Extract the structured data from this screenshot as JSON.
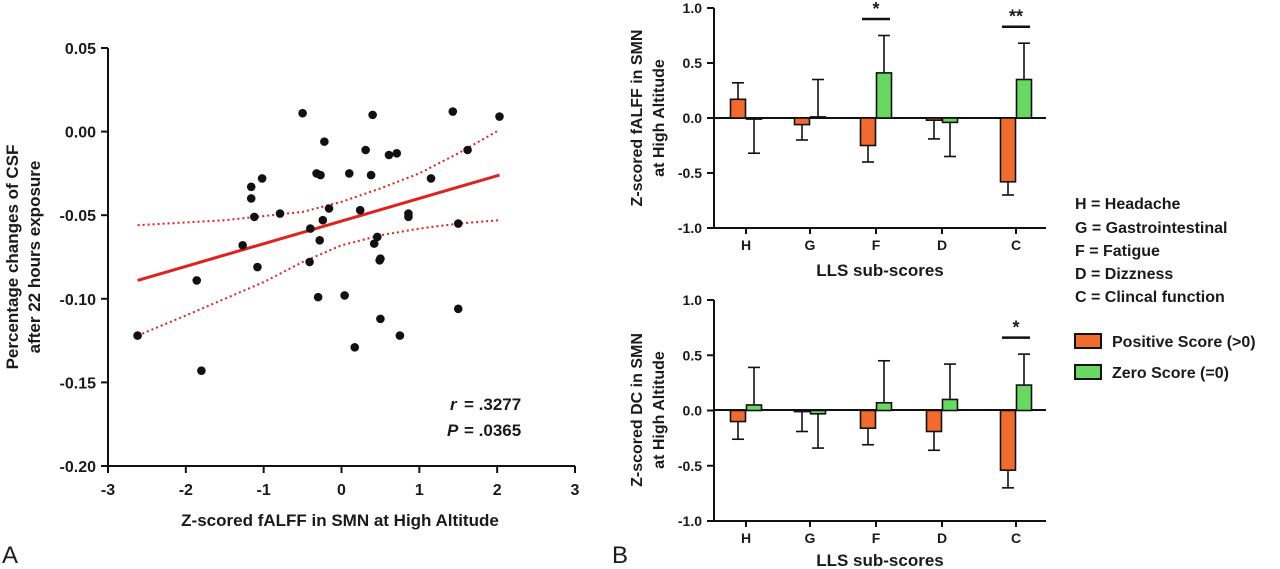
{
  "panel_labels": {
    "a": "A",
    "b": "B"
  },
  "colors": {
    "scatter_point": "#111111",
    "fit_line": "#e0211d",
    "positive_bar": "#f26b2e",
    "zero_bar": "#69d863",
    "axis": "#111111"
  },
  "chart_data": [
    {
      "id": "scatter",
      "type": "scatter",
      "xlabel": "Z-scored fALFF in SMN at High Altitude",
      "ylabel_lines": [
        "Percentage changes of CSF",
        "after 22 hours exposure"
      ],
      "xlim": [
        -3,
        3
      ],
      "ylim": [
        -0.2,
        0.05
      ],
      "xticks": [
        -3,
        -2,
        -1,
        0,
        1,
        2,
        3
      ],
      "xtick_labels": [
        "-3",
        "-2",
        "-1",
        "0",
        "1",
        "2",
        "3"
      ],
      "yticks": [
        -0.2,
        -0.15,
        -0.1,
        -0.05,
        0.0,
        0.05
      ],
      "ytick_labels": [
        "-0.20",
        "-0.15",
        "-0.10",
        "-0.05",
        "0.00",
        "0.05"
      ],
      "stats": {
        "r_label": "r",
        "r_value": "= .3277",
        "p_label": "P",
        "p_value": "= .0365"
      },
      "regression": {
        "fit": [
          [
            -2.62,
            -0.089
          ],
          [
            2.03,
            -0.026
          ]
        ],
        "ci_upper": [
          [
            -2.62,
            -0.056
          ],
          [
            -1.5,
            -0.053
          ],
          [
            -0.5,
            -0.048
          ],
          [
            0.0,
            -0.042
          ],
          [
            0.5,
            -0.034
          ],
          [
            1.0,
            -0.025
          ],
          [
            1.5,
            -0.013
          ],
          [
            2.03,
            0.001
          ]
        ],
        "ci_lower": [
          [
            -2.62,
            -0.122
          ],
          [
            -2.0,
            -0.11
          ],
          [
            -1.5,
            -0.1
          ],
          [
            -1.0,
            -0.09
          ],
          [
            -0.5,
            -0.078
          ],
          [
            0.0,
            -0.068
          ],
          [
            0.5,
            -0.062
          ],
          [
            1.0,
            -0.058
          ],
          [
            1.5,
            -0.055
          ],
          [
            2.03,
            -0.053
          ]
        ]
      },
      "points": [
        [
          -2.62,
          -0.122
        ],
        [
          -1.86,
          -0.089
        ],
        [
          -1.8,
          -0.143
        ],
        [
          -1.27,
          -0.068
        ],
        [
          -1.16,
          -0.033
        ],
        [
          -1.16,
          -0.04
        ],
        [
          -1.12,
          -0.051
        ],
        [
          -1.08,
          -0.081
        ],
        [
          -1.02,
          -0.028
        ],
        [
          -0.79,
          -0.049
        ],
        [
          -0.5,
          0.011
        ],
        [
          -0.41,
          -0.078
        ],
        [
          -0.4,
          -0.058
        ],
        [
          -0.32,
          -0.025
        ],
        [
          -0.3,
          -0.099
        ],
        [
          -0.28,
          -0.065
        ],
        [
          -0.27,
          -0.026
        ],
        [
          -0.24,
          -0.053
        ],
        [
          -0.22,
          -0.006
        ],
        [
          -0.16,
          -0.046
        ],
        [
          0.04,
          -0.098
        ],
        [
          0.1,
          -0.025
        ],
        [
          0.17,
          -0.129
        ],
        [
          0.24,
          -0.047
        ],
        [
          0.31,
          -0.011
        ],
        [
          0.38,
          -0.026
        ],
        [
          0.4,
          0.01
        ],
        [
          0.42,
          -0.067
        ],
        [
          0.46,
          -0.063
        ],
        [
          0.49,
          -0.077
        ],
        [
          0.5,
          -0.076
        ],
        [
          0.5,
          -0.112
        ],
        [
          0.61,
          -0.014
        ],
        [
          0.71,
          -0.013
        ],
        [
          0.75,
          -0.122
        ],
        [
          0.86,
          -0.049
        ],
        [
          0.86,
          -0.051
        ],
        [
          1.15,
          -0.028
        ],
        [
          1.43,
          0.012
        ],
        [
          1.5,
          -0.055
        ],
        [
          1.5,
          -0.106
        ],
        [
          1.62,
          -0.011
        ],
        [
          2.03,
          0.009
        ]
      ]
    },
    {
      "id": "bars-falff",
      "type": "bar",
      "xlabel": "LLS sub-scores",
      "ylabel_lines": [
        "Z-scored fALFF in SMN",
        "at High Altitude"
      ],
      "ylim": [
        -1.0,
        1.0
      ],
      "yticks": [
        -1.0,
        -0.5,
        0.0,
        0.5,
        1.0
      ],
      "ytick_labels": [
        "-1.0",
        "-0.5",
        "0.0",
        "0.5",
        "1.0"
      ],
      "categories": [
        "H",
        "G",
        "F",
        "D",
        "C"
      ],
      "series": [
        {
          "name": "Positive Score (>0)",
          "values": [
            0.17,
            -0.06,
            -0.25,
            -0.02,
            -0.58
          ],
          "errors": [
            0.15,
            0.14,
            0.15,
            0.17,
            0.12
          ]
        },
        {
          "name": "Zero Score (=0)",
          "values": [
            -0.01,
            0.01,
            0.41,
            -0.04,
            0.35
          ],
          "errors": [
            0.31,
            0.34,
            0.34,
            0.31,
            0.33
          ]
        }
      ],
      "significance": [
        {
          "category": "F",
          "label": "*"
        },
        {
          "category": "C",
          "label": "**"
        }
      ]
    },
    {
      "id": "bars-dc",
      "type": "bar",
      "xlabel": "LLS sub-scores",
      "ylabel_lines": [
        "Z-scored DC in SMN",
        "at High Altitude"
      ],
      "ylim": [
        -1.0,
        1.0
      ],
      "yticks": [
        -1.0,
        -0.5,
        0.0,
        0.5,
        1.0
      ],
      "ytick_labels": [
        "-1.0",
        "-0.5",
        "0.0",
        "0.5",
        "1.0"
      ],
      "categories": [
        "H",
        "G",
        "F",
        "D",
        "C"
      ],
      "series": [
        {
          "name": "Positive Score (>0)",
          "values": [
            -0.1,
            -0.01,
            -0.16,
            -0.19,
            -0.54
          ],
          "errors": [
            0.16,
            0.18,
            0.15,
            0.17,
            0.16
          ]
        },
        {
          "name": "Zero Score (=0)",
          "values": [
            0.05,
            -0.03,
            0.07,
            0.1,
            0.23
          ],
          "errors": [
            0.34,
            0.31,
            0.38,
            0.32,
            0.28
          ]
        }
      ],
      "significance": [
        {
          "category": "C",
          "label": "*"
        }
      ]
    }
  ],
  "abbreviations": [
    "H = Headache",
    "G = Gastrointestinal",
    "F = Fatigue",
    "D = Dizzness",
    "C = Clincal function"
  ],
  "legend": [
    {
      "label": "Positive Score (>0)",
      "color": "#f26b2e"
    },
    {
      "label": "Zero Score (=0)",
      "color": "#69d863"
    }
  ]
}
